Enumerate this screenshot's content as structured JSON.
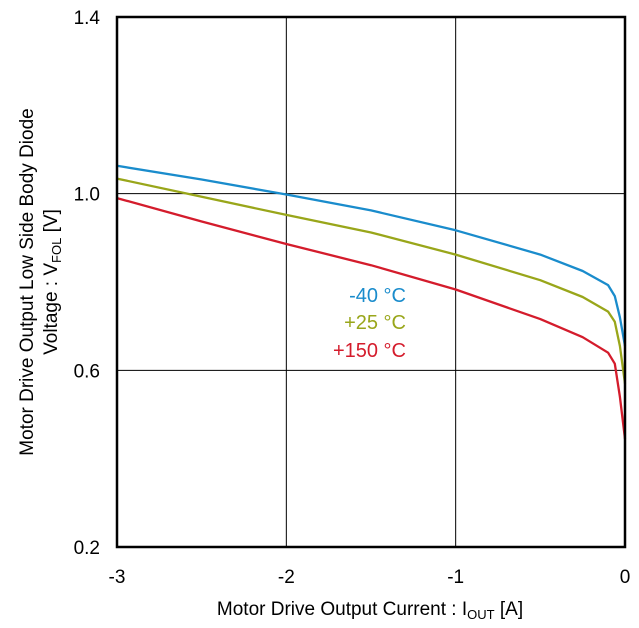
{
  "chart_data": {
    "type": "line",
    "xlabel": {
      "main": "Motor Drive Output Current : I",
      "sub": "OUT",
      "unit": " [A]"
    },
    "ylabel": {
      "line1": "Motor Drive Output Low Side Body Diode",
      "line2_main": "Voltage : V",
      "line2_sub": "FOL",
      "line2_unit": " [V]"
    },
    "xlim": [
      -3,
      0
    ],
    "ylim": [
      0.2,
      1.4
    ],
    "x_ticks": [
      -3,
      -2,
      -1,
      0
    ],
    "x_tick_labels": [
      "-3",
      "-2",
      "-1",
      "0"
    ],
    "y_ticks": [
      0.2,
      0.6,
      1.0,
      1.4
    ],
    "y_tick_labels": [
      "0.2",
      "0.6",
      "1.0",
      "1.4"
    ],
    "grid": true,
    "series": [
      {
        "name": "-40 °C",
        "color": "#1a8ccc",
        "points": [
          [
            -3.0,
            1.063
          ],
          [
            -2.5,
            1.032
          ],
          [
            -2.0,
            0.998
          ],
          [
            -1.5,
            0.962
          ],
          [
            -1.0,
            0.917
          ],
          [
            -0.5,
            0.862
          ],
          [
            -0.25,
            0.825
          ],
          [
            -0.1,
            0.793
          ],
          [
            -0.06,
            0.768
          ],
          [
            -0.03,
            0.72
          ],
          [
            0.0,
            0.655
          ]
        ]
      },
      {
        "name": "+25 °C",
        "color": "#99a61a",
        "points": [
          [
            -3.0,
            1.034
          ],
          [
            -2.5,
            0.993
          ],
          [
            -2.0,
            0.952
          ],
          [
            -1.5,
            0.912
          ],
          [
            -1.0,
            0.862
          ],
          [
            -0.5,
            0.804
          ],
          [
            -0.25,
            0.766
          ],
          [
            -0.1,
            0.733
          ],
          [
            -0.06,
            0.71
          ],
          [
            -0.03,
            0.655
          ],
          [
            0.0,
            0.57
          ]
        ]
      },
      {
        "name": "+150 °C",
        "color": "#d41c2c",
        "points": [
          [
            -3.0,
            0.99
          ],
          [
            -2.5,
            0.937
          ],
          [
            -2.0,
            0.886
          ],
          [
            -1.5,
            0.838
          ],
          [
            -1.0,
            0.783
          ],
          [
            -0.5,
            0.716
          ],
          [
            -0.25,
            0.675
          ],
          [
            -0.1,
            0.64
          ],
          [
            -0.06,
            0.615
          ],
          [
            -0.03,
            0.54
          ],
          [
            0.0,
            0.445
          ]
        ]
      }
    ]
  }
}
